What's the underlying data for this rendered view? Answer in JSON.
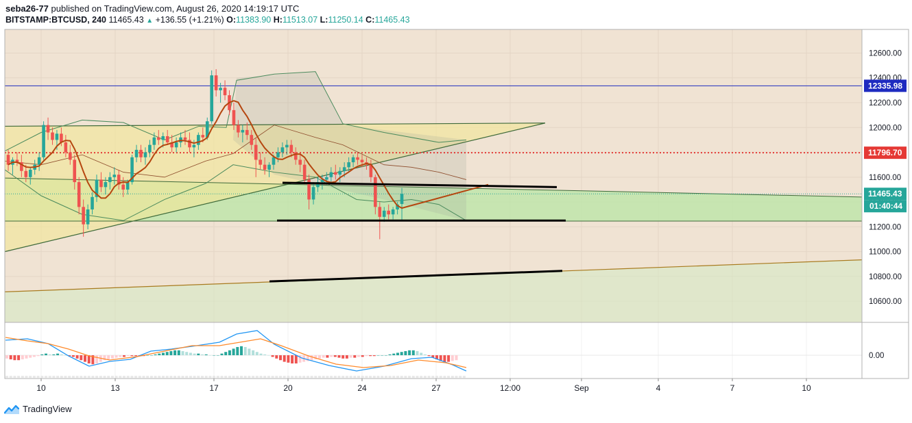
{
  "header": {
    "author": "seba26-77",
    "published": "published on TradingView.com, August 26, 2020 14:19:17 UTC",
    "symbol": "BITSTAMP:BTCUSD, 240",
    "last": "11465.43",
    "change": "+136.55 (+1.21%)",
    "o_label": "O:",
    "o": "11383.90",
    "h_label": "H:",
    "h": "11513.07",
    "l_label": "L:",
    "l": "11250.14",
    "c_label": "C:",
    "c": "11465.43"
  },
  "footer": {
    "brand": "TradingView"
  },
  "colors": {
    "up": "#26a69a",
    "down": "#ef5350",
    "bg": "#f0e3d3",
    "grid": "#e4d6c6",
    "band": "#4a8a5c",
    "ma": "#b5460f",
    "blue": "#1e2bc0",
    "red": "#e53935"
  },
  "chart_data": {
    "type": "candlestick",
    "title": "BITSTAMP:BTCUSD, 240",
    "ylim": [
      10430,
      12790
    ],
    "y_ticks": [
      12600,
      12400,
      12200,
      12000,
      11800,
      11600,
      11400,
      11200,
      11000,
      10800,
      10600
    ],
    "y_tick_labels": [
      "12600.00",
      "12400.00",
      "12200.00",
      "12000.00",
      "11800.00",
      "11600.00",
      "11400.00",
      "11200.00",
      "11000.00",
      "10800.00",
      "10600.00"
    ],
    "x_tick_labels": [
      "10",
      "13",
      "17",
      "20",
      "24",
      "27",
      "12:00",
      "Sep",
      "4",
      "7",
      "10"
    ],
    "x_tick_pos": [
      14,
      41,
      77,
      104,
      131,
      158,
      185,
      211,
      239,
      266,
      293
    ],
    "price_labels": [
      {
        "value": 12335.98,
        "text": "12335.98",
        "color": "#1e2bc0"
      },
      {
        "value": 11796.7,
        "text": "11796.70",
        "color": "#e53935"
      },
      {
        "value": 11465.43,
        "text": "11465.43",
        "color": "#26a69a"
      }
    ],
    "countdown": "01:40:44",
    "horizontal_lines": [
      {
        "value": 12335.98,
        "color": "#1e2bc0",
        "style": "solid"
      },
      {
        "value": 11796.7,
        "color": "#e53935",
        "style": "dotted"
      }
    ],
    "macd": {
      "zero_label": "0.00",
      "hist": [
        -4,
        -5,
        -6,
        -6,
        -5,
        -4,
        -3,
        -2,
        -1,
        1,
        2,
        1,
        1,
        2,
        1,
        0,
        -1,
        -2,
        -4,
        -6,
        -8,
        -10,
        -11,
        -10,
        -8,
        -6,
        -5,
        -4,
        -3,
        -2,
        -2,
        -1,
        -1,
        -1,
        -1,
        -1,
        0,
        0,
        1,
        2,
        3,
        4,
        5,
        6,
        6,
        5,
        4,
        3,
        2,
        2,
        1,
        1,
        0,
        0,
        0,
        2,
        4,
        6,
        8,
        10,
        11,
        10,
        8,
        6,
        4,
        2,
        1,
        0,
        -2,
        -4,
        -6,
        -8,
        -9,
        -10,
        -10,
        -9,
        -8,
        -7,
        -6,
        -5,
        -4,
        -3,
        -3,
        -2,
        -2,
        -3,
        -4,
        -4,
        -3,
        -3,
        -2,
        -2,
        -1,
        -1,
        -1,
        0,
        0,
        0,
        1,
        2,
        3,
        4,
        5,
        6,
        6,
        5,
        3,
        1,
        -1,
        -3,
        -5,
        -7,
        -8,
        -8,
        -7,
        -6
      ]
    },
    "candles": [
      [
        11780,
        11820,
        11650,
        11700
      ],
      [
        11700,
        11760,
        11620,
        11740
      ],
      [
        11740,
        11800,
        11690,
        11720
      ],
      [
        11720,
        11780,
        11600,
        11650
      ],
      [
        11650,
        11700,
        11560,
        11600
      ],
      [
        11600,
        11680,
        11540,
        11660
      ],
      [
        11660,
        11740,
        11620,
        11700
      ],
      [
        11700,
        11800,
        11650,
        11760
      ],
      [
        11760,
        12050,
        11740,
        12020
      ],
      [
        12020,
        12080,
        11900,
        11960
      ],
      [
        11960,
        12000,
        11860,
        11900
      ],
      [
        11900,
        11980,
        11820,
        11950
      ],
      [
        11950,
        12000,
        11850,
        11880
      ],
      [
        11880,
        11940,
        11760,
        11800
      ],
      [
        11800,
        11860,
        11700,
        11740
      ],
      [
        11740,
        11780,
        11500,
        11560
      ],
      [
        11560,
        11600,
        11300,
        11360
      ],
      [
        11360,
        11420,
        11120,
        11220
      ],
      [
        11220,
        11380,
        11180,
        11340
      ],
      [
        11340,
        11480,
        11300,
        11440
      ],
      [
        11440,
        11620,
        11400,
        11580
      ],
      [
        11580,
        11640,
        11480,
        11520
      ],
      [
        11520,
        11600,
        11460,
        11560
      ],
      [
        11560,
        11640,
        11500,
        11600
      ],
      [
        11600,
        11680,
        11540,
        11620
      ],
      [
        11620,
        11660,
        11500,
        11540
      ],
      [
        11540,
        11600,
        11440,
        11500
      ],
      [
        11500,
        11580,
        11460,
        11560
      ],
      [
        11560,
        11780,
        11540,
        11760
      ],
      [
        11760,
        11860,
        11720,
        11820
      ],
      [
        11820,
        11860,
        11720,
        11760
      ],
      [
        11760,
        11840,
        11700,
        11800
      ],
      [
        11800,
        11900,
        11760,
        11860
      ],
      [
        11860,
        11960,
        11820,
        11920
      ],
      [
        11920,
        11980,
        11860,
        11900
      ],
      [
        11900,
        11960,
        11840,
        11930
      ],
      [
        11930,
        11980,
        11860,
        11880
      ],
      [
        11880,
        11940,
        11800,
        11840
      ],
      [
        11840,
        11920,
        11800,
        11880
      ],
      [
        11880,
        11960,
        11840,
        11920
      ],
      [
        11920,
        11980,
        11860,
        11900
      ],
      [
        11900,
        11960,
        11800,
        11840
      ],
      [
        11840,
        11900,
        11760,
        11860
      ],
      [
        11860,
        11960,
        11820,
        11940
      ],
      [
        11940,
        12000,
        11880,
        11920
      ],
      [
        11920,
        12080,
        11900,
        12050
      ],
      [
        12050,
        12460,
        12030,
        12420
      ],
      [
        12420,
        12470,
        12250,
        12300
      ],
      [
        12300,
        12360,
        12200,
        12320
      ],
      [
        12320,
        12380,
        12220,
        12260
      ],
      [
        12260,
        12300,
        12100,
        12140
      ],
      [
        12140,
        12200,
        11980,
        12020
      ],
      [
        12020,
        12060,
        11920,
        11960
      ],
      [
        11960,
        12020,
        11880,
        11980
      ],
      [
        11980,
        12040,
        11900,
        11940
      ],
      [
        11940,
        11980,
        11820,
        11860
      ],
      [
        11860,
        11920,
        11600,
        11740
      ],
      [
        11740,
        11800,
        11660,
        11700
      ],
      [
        11700,
        11760,
        11620,
        11660
      ],
      [
        11660,
        11720,
        11600,
        11700
      ],
      [
        11700,
        11780,
        11660,
        11760
      ],
      [
        11760,
        11840,
        11720,
        11800
      ],
      [
        11800,
        11880,
        11760,
        11840
      ],
      [
        11840,
        11900,
        11780,
        11860
      ],
      [
        11860,
        11900,
        11760,
        11800
      ],
      [
        11800,
        11840,
        11700,
        11740
      ],
      [
        11740,
        11780,
        11640,
        11700
      ],
      [
        11700,
        11740,
        11540,
        11580
      ],
      [
        11580,
        11620,
        11340,
        11420
      ],
      [
        11420,
        11560,
        11380,
        11520
      ],
      [
        11520,
        11600,
        11480,
        11560
      ],
      [
        11560,
        11620,
        11500,
        11580
      ],
      [
        11580,
        11640,
        11540,
        11600
      ],
      [
        11600,
        11680,
        11560,
        11640
      ],
      [
        11640,
        11700,
        11580,
        11620
      ],
      [
        11620,
        11680,
        11560,
        11650
      ],
      [
        11650,
        11720,
        11600,
        11680
      ],
      [
        11680,
        11760,
        11640,
        11720
      ],
      [
        11720,
        11780,
        11680,
        11760
      ],
      [
        11760,
        11800,
        11700,
        11740
      ],
      [
        11740,
        11780,
        11680,
        11720
      ],
      [
        11720,
        11760,
        11660,
        11700
      ],
      [
        11700,
        11740,
        11560,
        11600
      ],
      [
        11600,
        11620,
        11300,
        11360
      ],
      [
        11360,
        11400,
        11100,
        11280
      ],
      [
        11280,
        11360,
        11240,
        11330
      ],
      [
        11330,
        11380,
        11260,
        11300
      ],
      [
        11300,
        11360,
        11260,
        11340
      ],
      [
        11340,
        11400,
        11300,
        11380
      ],
      [
        11383.9,
        11513.07,
        11250.14,
        11465.43
      ]
    ]
  }
}
